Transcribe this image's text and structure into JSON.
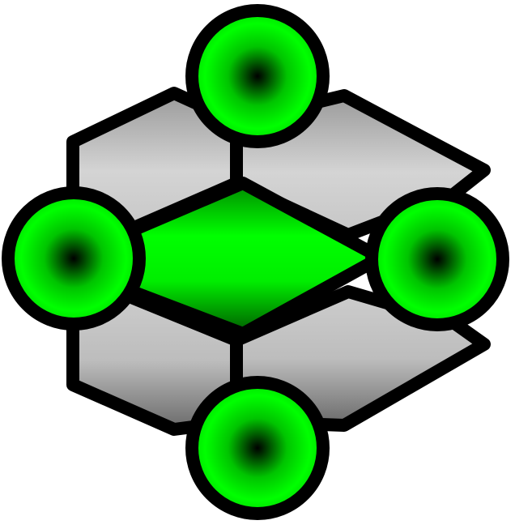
{
  "icon": {
    "name": "network-nodes-icon",
    "colors": {
      "outline": "#000000",
      "panel_light": "#cfcfcf",
      "panel_dark": "#6e6e6e",
      "node_bright": "#00ff00",
      "node_dark": "#000000",
      "background": "#ffffff"
    },
    "nodes": [
      "top-node",
      "left-node",
      "right-node",
      "bottom-node"
    ],
    "panels": [
      "upper-left-panel",
      "upper-right-panel",
      "lower-left-panel",
      "lower-right-panel"
    ],
    "center": "center-diamond"
  }
}
